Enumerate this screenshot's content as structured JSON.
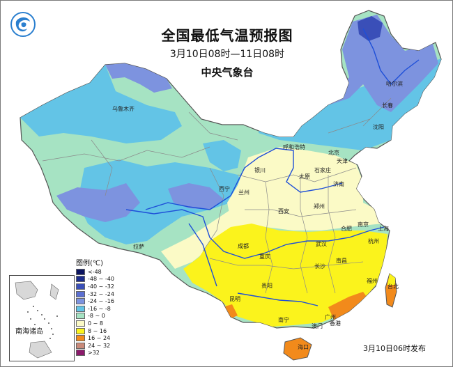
{
  "header": {
    "title": "全国最低气温预报图",
    "period": "3月10日08时—11日08时",
    "issuer": "中央气象台"
  },
  "legend": {
    "title": "图例(℃)",
    "items": [
      {
        "label": "<-48",
        "color": "#0b1460"
      },
      {
        "label": "-48 ~ -40",
        "color": "#1c2d8c"
      },
      {
        "label": "-40 ~ -32",
        "color": "#3a4fb8"
      },
      {
        "label": "-32 ~ -24",
        "color": "#5b6fd1"
      },
      {
        "label": "-24 ~ -16",
        "color": "#7d93df"
      },
      {
        "label": "-16 ~ -8",
        "color": "#63c4e6"
      },
      {
        "label": "-8 ~ 0",
        "color": "#a6e3c3"
      },
      {
        "label": "0 ~ 8",
        "color": "#fbfac6"
      },
      {
        "label": "8 ~ 16",
        "color": "#fbf31c"
      },
      {
        "label": "16 ~ 24",
        "color": "#f28a1b"
      },
      {
        "label": "24 ~ 32",
        "color": "#c98a7a"
      },
      {
        "label": ">32",
        "color": "#8b1a6b"
      }
    ]
  },
  "inset": {
    "label": "南海诸岛"
  },
  "footer": {
    "publish_note": "3月10日06时发布"
  },
  "cities": [
    "乌鲁木齐",
    "哈尔滨",
    "长春",
    "沈阳",
    "呼和浩特",
    "北京",
    "天津",
    "银川",
    "太原",
    "石家庄",
    "济南",
    "西宁",
    "兰州",
    "西安",
    "郑州",
    "合肥",
    "南京",
    "上海",
    "杭州",
    "武汉",
    "成都",
    "重庆",
    "长沙",
    "南昌",
    "福州",
    "台北",
    "贵阳",
    "拉萨",
    "昆明",
    "南宁",
    "广州",
    "香港",
    "澳门",
    "海口"
  ]
}
